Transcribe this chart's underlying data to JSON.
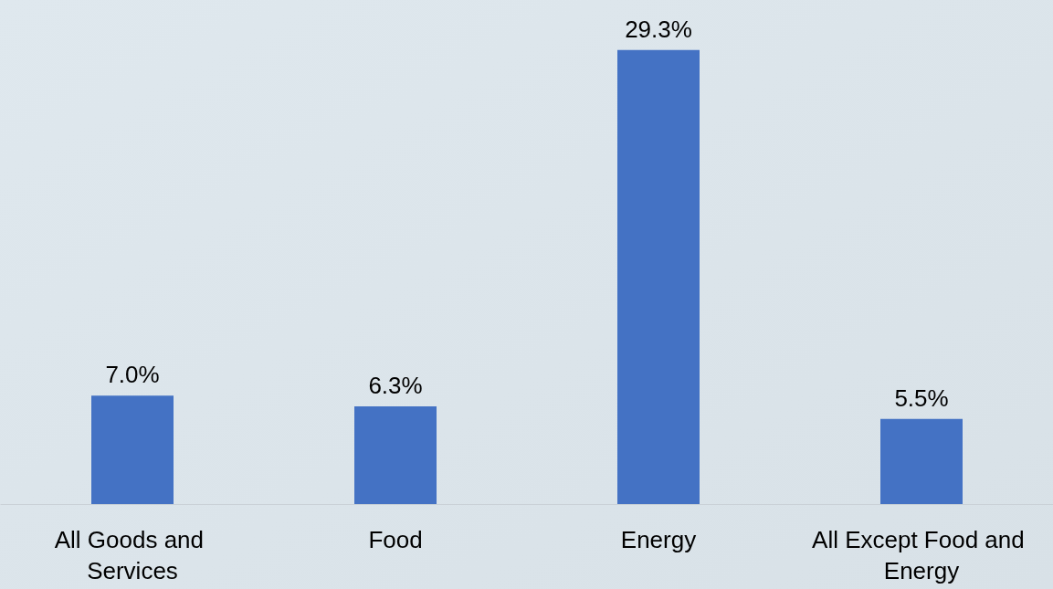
{
  "chart_data": {
    "type": "bar",
    "categories": [
      "All Goods and Services",
      "Food",
      "Energy",
      "All Except Food and Energy"
    ],
    "values": [
      7.0,
      6.3,
      29.3,
      5.5
    ],
    "value_labels": [
      "7.0%",
      "6.3%",
      "29.3%",
      "5.5%"
    ],
    "color": "#4472c4"
  }
}
